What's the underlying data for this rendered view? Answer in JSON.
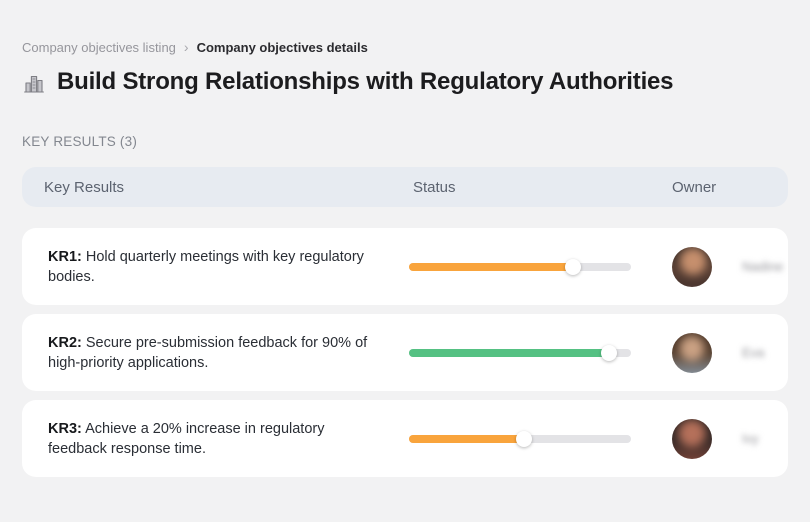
{
  "breadcrumb": {
    "items": [
      {
        "label": "Company objectives listing"
      },
      {
        "label": "Company objectives details"
      }
    ],
    "separator": "›"
  },
  "header": {
    "icon": "buildings-icon",
    "title": "Build Strong Relationships with Regulatory Authorities"
  },
  "section": {
    "label": "KEY RESULTS (3)"
  },
  "table": {
    "columns": {
      "key_results": "Key Results",
      "status": "Status",
      "owner": "Owner"
    },
    "rows": [
      {
        "kr_label": "KR1:",
        "kr_text": "Hold quarterly meetings with key regulatory bodies.",
        "progress_percent": 74,
        "progress_color": "#f9a43c",
        "owner_name": "Nadine"
      },
      {
        "kr_label": "KR2:",
        "kr_text": "Secure pre-submission feedback for 90% of high-priority applications.",
        "progress_percent": 90,
        "progress_color": "#55c183",
        "owner_name": "Eva"
      },
      {
        "kr_label": "KR3:",
        "kr_text": "Achieve a 20% increase in regulatory feedback response time.",
        "progress_percent": 52,
        "progress_color": "#f9a43c",
        "owner_name": "Ivy"
      }
    ]
  },
  "colors": {
    "page_background": "#f2f2f3",
    "header_pill_background": "#e7ebf1",
    "card_background": "#ffffff",
    "track_color": "#e3e3e6",
    "orange": "#f9a43c",
    "green": "#55c183"
  }
}
